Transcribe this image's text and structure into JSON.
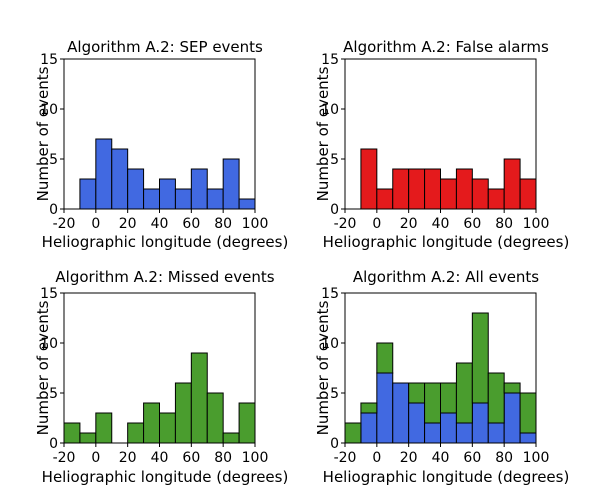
{
  "colors": {
    "sep": "#4169e1",
    "false_alarm": "#e41a1c",
    "missed": "#4a9d2e",
    "edge": "#000000"
  },
  "chart_data": [
    {
      "type": "bar",
      "title": "Algorithm A.2: SEP events",
      "xlabel": "Heliographic longitude (degrees)",
      "ylabel": "Number of events",
      "xlim": [
        -20,
        100
      ],
      "ylim": [
        0,
        15
      ],
      "xticks": [
        "-20",
        "0",
        "20",
        "40",
        "60",
        "80",
        "100"
      ],
      "yticks": [
        "0",
        "5",
        "10",
        "15"
      ],
      "bin_edges": [
        -10,
        0,
        10,
        20,
        30,
        40,
        50,
        60,
        70,
        80,
        90,
        100
      ],
      "series": [
        {
          "values": [
            3,
            7,
            6,
            4,
            2,
            3,
            2,
            4,
            2,
            5,
            1
          ],
          "color": "#4169e1"
        }
      ]
    },
    {
      "type": "bar",
      "title": "Algorithm A.2: False alarms",
      "xlabel": "Heliographic longitude (degrees)",
      "ylabel": "Number of events",
      "xlim": [
        -20,
        100
      ],
      "ylim": [
        0,
        15
      ],
      "xticks": [
        "-20",
        "0",
        "20",
        "40",
        "60",
        "80",
        "100"
      ],
      "yticks": [
        "0",
        "5",
        "10",
        "15"
      ],
      "bin_edges": [
        -10,
        0,
        10,
        20,
        30,
        40,
        50,
        60,
        70,
        80,
        90,
        100
      ],
      "series": [
        {
          "values": [
            6,
            2,
            4,
            4,
            4,
            3,
            4,
            3,
            2,
            5,
            3
          ],
          "color": "#e41a1c"
        }
      ]
    },
    {
      "type": "bar",
      "title": "Algorithm A.2: Missed events",
      "xlabel": "Heliographic longitude (degrees)",
      "ylabel": "Number of events",
      "xlim": [
        -20,
        100
      ],
      "ylim": [
        0,
        15
      ],
      "xticks": [
        "-20",
        "0",
        "20",
        "40",
        "60",
        "80",
        "100"
      ],
      "yticks": [
        "0",
        "5",
        "10",
        "15"
      ],
      "bin_edges": [
        -20,
        -10,
        0,
        10,
        20,
        30,
        40,
        50,
        60,
        70,
        80,
        90,
        100
      ],
      "series": [
        {
          "values": [
            2,
            1,
            3,
            0,
            2,
            4,
            3,
            6,
            9,
            5,
            1,
            4
          ],
          "color": "#4a9d2e"
        }
      ]
    },
    {
      "type": "bar",
      "stacked": true,
      "title": "Algorithm A.2: All events",
      "xlabel": "Heliographic longitude (degrees)",
      "ylabel": "Number of events",
      "xlim": [
        -20,
        100
      ],
      "ylim": [
        0,
        15
      ],
      "xticks": [
        "-20",
        "0",
        "20",
        "40",
        "60",
        "80",
        "100"
      ],
      "yticks": [
        "0",
        "5",
        "10",
        "15"
      ],
      "bin_edges": [
        -20,
        -10,
        0,
        10,
        20,
        30,
        40,
        50,
        60,
        70,
        80,
        90,
        100
      ],
      "series": [
        {
          "values": [
            0,
            3,
            7,
            6,
            4,
            2,
            3,
            2,
            4,
            2,
            5,
            1
          ],
          "color": "#4169e1"
        },
        {
          "values": [
            2,
            1,
            3,
            0,
            2,
            4,
            3,
            6,
            9,
            5,
            1,
            4
          ],
          "color": "#4a9d2e"
        }
      ]
    }
  ]
}
